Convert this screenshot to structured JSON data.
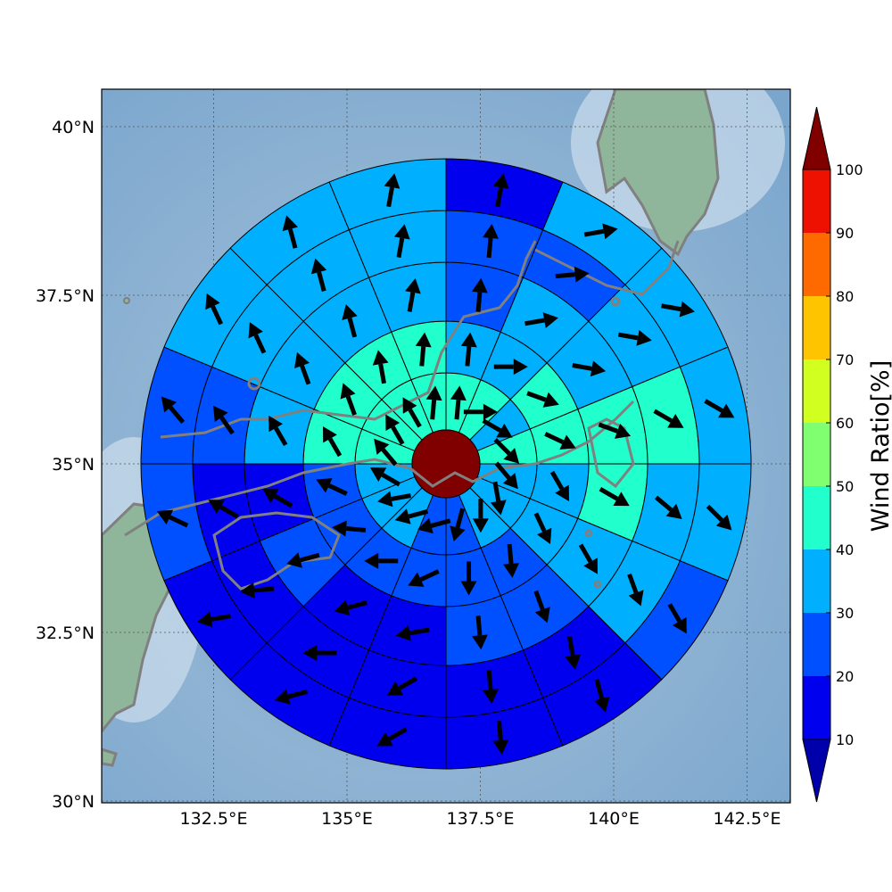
{
  "map": {
    "lat_labels": [
      {
        "value": 40.0,
        "text": "40°N"
      },
      {
        "value": 37.5,
        "text": "37.5°N"
      },
      {
        "value": 35.0,
        "text": "35°N"
      },
      {
        "value": 32.5,
        "text": "32.5°N"
      },
      {
        "value": 30.0,
        "text": "30°N"
      }
    ],
    "lon_labels": [
      {
        "value": 132.5,
        "text": "132.5°E"
      },
      {
        "value": 135.0,
        "text": "135°E"
      },
      {
        "value": 137.5,
        "text": "137.5°E"
      },
      {
        "value": 140.0,
        "text": "140°E"
      },
      {
        "value": 142.5,
        "text": "142.5°E"
      }
    ],
    "gridlines": true
  },
  "colorbar": {
    "title": "Wind Ratio[%]",
    "ticks": [
      "10",
      "20",
      "30",
      "40",
      "50",
      "60",
      "70",
      "80",
      "90",
      "100"
    ],
    "colors": [
      "#0000aa",
      "#0000ee",
      "#0050ff",
      "#00b0ff",
      "#20ffcc",
      "#80ff70",
      "#d0ff20",
      "#ffc400",
      "#ff6a00",
      "#ee1000",
      "#800000"
    ],
    "extend": "both"
  },
  "chart_data": {
    "type": "polar_wind_rose_map",
    "center_ratio_percent": 100,
    "rings": 5,
    "sectors": 16,
    "ratio_percent_by_ring": [
      [
        40,
        40,
        30,
        40,
        30,
        30,
        30,
        20,
        20,
        30,
        30,
        30,
        40,
        40,
        40,
        40
      ],
      [
        30,
        30,
        40,
        40,
        30,
        30,
        20,
        20,
        20,
        20,
        20,
        20,
        40,
        40,
        40,
        40
      ],
      [
        20,
        30,
        30,
        40,
        40,
        30,
        20,
        20,
        10,
        10,
        20,
        10,
        30,
        30,
        30,
        30
      ],
      [
        20,
        20,
        30,
        40,
        30,
        30,
        10,
        10,
        10,
        10,
        10,
        10,
        20,
        30,
        30,
        30
      ],
      [
        10,
        30,
        30,
        30,
        30,
        20,
        10,
        10,
        10,
        10,
        10,
        20,
        20,
        30,
        30,
        30
      ]
    ],
    "wind_direction_deg_by_ring": [
      [
        5,
        90,
        120,
        135,
        140,
        170,
        180,
        195,
        255,
        255,
        260,
        300,
        320,
        330,
        330,
        5
      ],
      [
        5,
        90,
        110,
        115,
        150,
        155,
        175,
        180,
        245,
        270,
        275,
        295,
        330,
        340,
        350,
        5
      ],
      [
        5,
        80,
        100,
        110,
        120,
        150,
        160,
        175,
        260,
        255,
        255,
        300,
        330,
        340,
        345,
        10
      ],
      [
        5,
        85,
        100,
        120,
        130,
        160,
        170,
        175,
        240,
        270,
        265,
        300,
        325,
        335,
        345,
        10
      ],
      [
        10,
        80,
        100,
        120,
        135,
        150,
        165,
        175,
        240,
        255,
        260,
        295,
        320,
        335,
        345,
        10
      ]
    ]
  }
}
